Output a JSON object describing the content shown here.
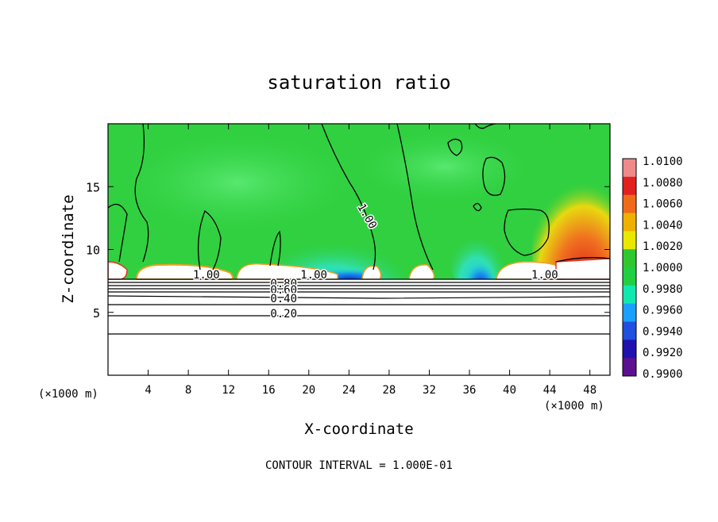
{
  "chart_data": {
    "type": "heatmap",
    "title": "saturation ratio",
    "xlabel": "X-coordinate",
    "ylabel": "Z-coordinate",
    "x_unit_left": "(×1000 m)",
    "x_unit_right": "(×1000 m)",
    "footer": "CONTOUR INTERVAL = 1.000E-01",
    "xlim": [
      0,
      50
    ],
    "ylim": [
      0,
      20
    ],
    "x_ticks": [
      4,
      8,
      12,
      16,
      20,
      24,
      28,
      32,
      36,
      40,
      44,
      48
    ],
    "y_ticks": [
      5,
      10,
      15
    ],
    "contour_labels": [
      {
        "text": "1.00",
        "x": 9.8,
        "y": 7.7
      },
      {
        "text": "1.00",
        "x": 20.5,
        "y": 7.7
      },
      {
        "text": "1.00",
        "x": 43.5,
        "y": 7.7
      },
      {
        "text": "1.00",
        "x": 25.5,
        "y": 12.5
      },
      {
        "text": "0.80",
        "x": 17.5,
        "y": 7.0
      },
      {
        "text": "0.60",
        "x": 17.5,
        "y": 6.5
      },
      {
        "text": "0.40",
        "x": 17.5,
        "y": 5.8
      },
      {
        "text": "0.20",
        "x": 17.5,
        "y": 4.6
      }
    ],
    "colorbar": {
      "levels": [
        "1.0100",
        "1.0080",
        "1.0060",
        "1.0040",
        "1.0020",
        "1.0000",
        "0.9980",
        "0.9960",
        "0.9940",
        "0.9920",
        "0.9900"
      ],
      "colors": [
        "#f08a8a",
        "#e32020",
        "#f06a1a",
        "#f0b000",
        "#e8e800",
        "#30c830",
        "#20d040",
        "#10e8b0",
        "#1aa0ff",
        "#2050e0",
        "#2010b0",
        "#5a1090"
      ]
    },
    "colors": {
      "background": "#30d040",
      "saturated_light": "#44e060",
      "subsaturated": "#ffffff",
      "cyan": "#20e8c0",
      "blue": "#1050e0",
      "red": "#e83020",
      "orange": "#f0a020"
    }
  }
}
